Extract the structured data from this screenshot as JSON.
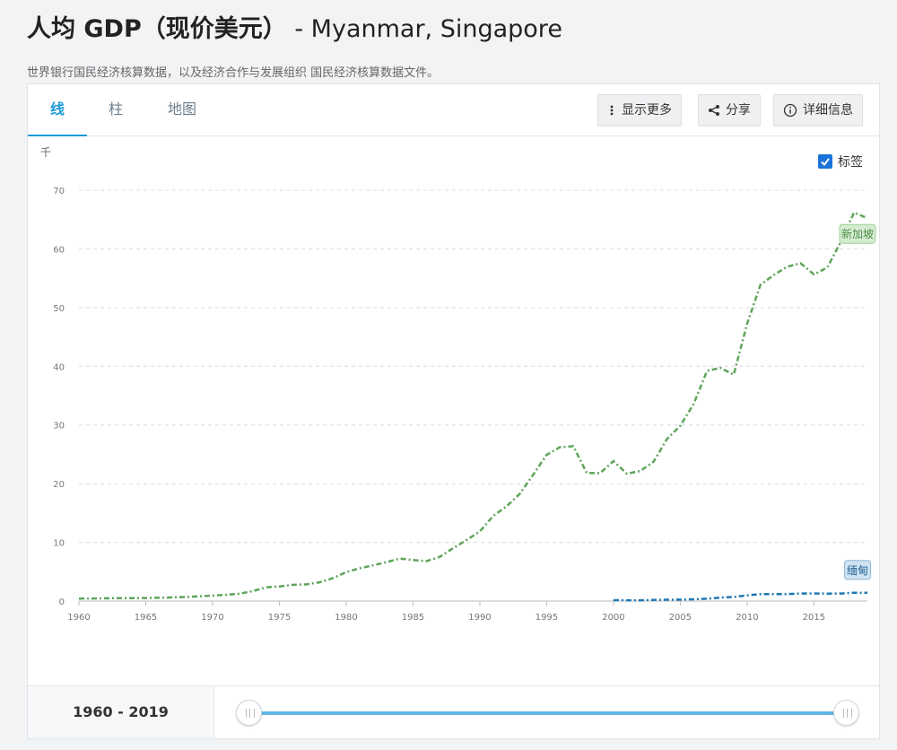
{
  "header": {
    "title_main": "人均 GDP（现价美元）",
    "title_countries": " - Myanmar, Singapore",
    "subtitle": "世界银行国民经济核算数据，以及经济合作与发展组织 国民经济核算数据文件。"
  },
  "tabs": [
    {
      "label": "线",
      "active": true
    },
    {
      "label": "柱",
      "active": false
    },
    {
      "label": "地图",
      "active": false
    }
  ],
  "toolbar": {
    "more_label": "显示更多",
    "share_label": "分享",
    "details_label": "详细信息"
  },
  "labels_toggle": {
    "label": "标签",
    "checked": true
  },
  "footer": {
    "range_label": "1960 - 2019"
  },
  "colors": {
    "singapore": "#5fa55a",
    "myanmar": "#1f77b4",
    "accent": "#1b9ad8"
  },
  "chart_data": {
    "type": "line",
    "ylabel": "千",
    "ylim": [
      0,
      70
    ],
    "yticks": [
      0,
      10,
      20,
      30,
      40,
      50,
      60,
      70
    ],
    "xlim": [
      1960,
      2019
    ],
    "xticks": [
      1960,
      1965,
      1970,
      1975,
      1980,
      1985,
      1990,
      1995,
      2000,
      2005,
      2010,
      2015
    ],
    "grid": true,
    "series": [
      {
        "name": "新加坡",
        "color": "#5fa55a",
        "x": [
          1960,
          1961,
          1962,
          1963,
          1964,
          1965,
          1966,
          1967,
          1968,
          1969,
          1970,
          1971,
          1972,
          1973,
          1974,
          1975,
          1976,
          1977,
          1978,
          1979,
          1980,
          1981,
          1982,
          1983,
          1984,
          1985,
          1986,
          1987,
          1988,
          1989,
          1990,
          1991,
          1992,
          1993,
          1994,
          1995,
          1996,
          1997,
          1998,
          1999,
          2000,
          2001,
          2002,
          2003,
          2004,
          2005,
          2006,
          2007,
          2008,
          2009,
          2010,
          2011,
          2012,
          2013,
          2014,
          2015,
          2016,
          2017,
          2018,
          2019
        ],
        "values": [
          0.43,
          0.45,
          0.47,
          0.51,
          0.49,
          0.52,
          0.57,
          0.62,
          0.71,
          0.81,
          0.93,
          1.07,
          1.26,
          1.69,
          2.34,
          2.49,
          2.77,
          2.85,
          3.19,
          3.9,
          4.93,
          5.6,
          6.08,
          6.63,
          7.23,
          7.0,
          6.8,
          7.54,
          9.02,
          10.39,
          11.86,
          14.5,
          16.14,
          18.3,
          21.55,
          24.92,
          26.23,
          26.38,
          21.83,
          21.8,
          23.85,
          21.7,
          22.16,
          23.73,
          27.61,
          29.87,
          33.58,
          39.22,
          39.72,
          38.58,
          47.24,
          53.89,
          55.55,
          56.97,
          57.56,
          55.65,
          56.83,
          61.16,
          66.19,
          65.23
        ]
      },
      {
        "name": "缅甸",
        "color": "#1f77b4",
        "x": [
          2000,
          2001,
          2002,
          2003,
          2004,
          2005,
          2006,
          2007,
          2008,
          2009,
          2010,
          2011,
          2012,
          2013,
          2014,
          2015,
          2016,
          2017,
          2018,
          2019
        ],
        "values": [
          0.16,
          0.14,
          0.14,
          0.2,
          0.23,
          0.25,
          0.3,
          0.4,
          0.6,
          0.7,
          0.98,
          1.19,
          1.18,
          1.19,
          1.29,
          1.3,
          1.27,
          1.29,
          1.42,
          1.41
        ]
      }
    ]
  }
}
